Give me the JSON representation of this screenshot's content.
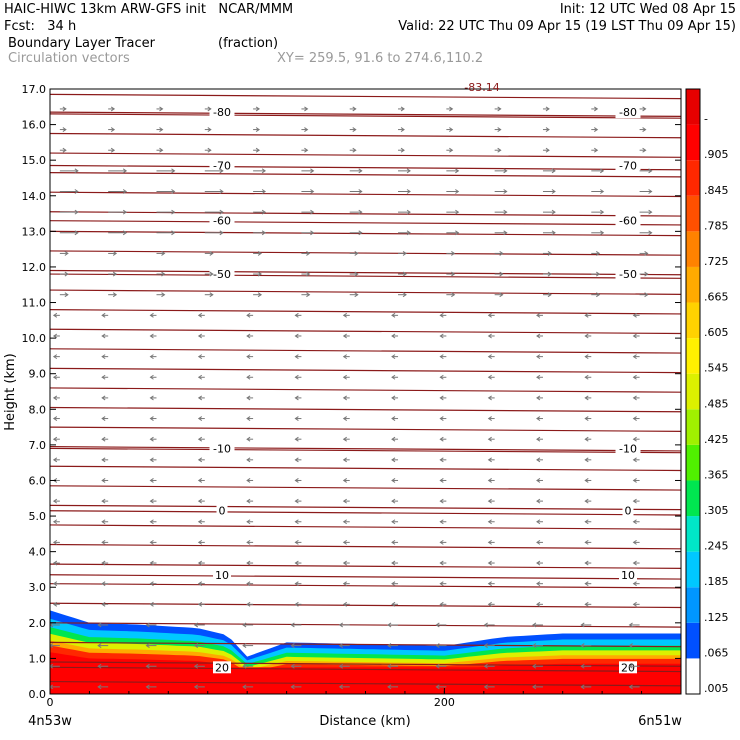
{
  "header": {
    "line1_left": "HAIC-HIWC 13km ARW-GFS init   NCAR/MMM",
    "line1_right": "Init: 12 UTC Wed 08 Apr 15",
    "line2_left": "Fcst:   34 h",
    "line2_right": "Valid: 22 UTC Thu 09 Apr 15 (19 LST Thu 09 Apr 15)",
    "field_name": "Boundary Layer Tracer",
    "field_units": "(fraction)",
    "vector_name": "Circulation vectors",
    "xy_range": "XY= 259.5, 91.6 to 274.6,110.2"
  },
  "chart_data": {
    "type": "cross-section",
    "xlabel": "Distance (km)",
    "ylabel": "Height (km)",
    "xlim": [
      0,
      320
    ],
    "ylim": [
      0,
      17
    ],
    "x_ticks": [
      0,
      200
    ],
    "x_tick_labels": [
      "0",
      "200"
    ],
    "x_end_labels": {
      "left": "4n53w",
      "right": "6n51w"
    },
    "y_ticks": [
      0,
      1,
      2,
      3,
      4,
      5,
      6,
      7,
      8,
      9,
      10,
      11,
      12,
      13,
      14,
      15,
      16,
      17
    ],
    "y_tick_labels": [
      "0.0",
      "1.0",
      "2.0",
      "3.0",
      "4.0",
      "5.0",
      "6.0",
      "7.0",
      "8.0",
      "9.0",
      "10.0",
      "11.0",
      "12.0",
      "13.0",
      "14.0",
      "15.0",
      "16.0",
      "17.0"
    ],
    "colorbar": {
      "labels": [
        ".005",
        ".065",
        ".125",
        ".185",
        ".245",
        ".305",
        ".365",
        ".425",
        ".485",
        ".545",
        ".605",
        ".665",
        ".725",
        ".785",
        ".845",
        ".905",
        "-"
      ],
      "colors": [
        "#ffffff",
        "#0050ff",
        "#0096ff",
        "#00c8ff",
        "#00e6c8",
        "#00e650",
        "#50f000",
        "#a0f000",
        "#dcf000",
        "#fff000",
        "#ffd200",
        "#ffaa00",
        "#ff8200",
        "#ff5000",
        "#ff2800",
        "#ff0000",
        "#e60000"
      ]
    },
    "contour_color": "#8b1a1a",
    "isotherms": [
      {
        "label": "-80",
        "y": 16.35
      },
      {
        "label": "-70",
        "y": 14.85
      },
      {
        "label": "-60",
        "y": 13.3
      },
      {
        "label": "-50",
        "y": 11.8
      },
      {
        "label": "-10",
        "y": 6.9
      },
      {
        "label": "0",
        "y": 5.15
      },
      {
        "label": "10",
        "y": 3.35
      },
      {
        "label": "20",
        "y": 0.75
      }
    ],
    "top_label": "-83.14",
    "tracer_top_km": [
      {
        "x": 0,
        "y": 2.35
      },
      {
        "x": 20,
        "y": 2.0
      },
      {
        "x": 45,
        "y": 1.95
      },
      {
        "x": 75,
        "y": 1.85
      },
      {
        "x": 90,
        "y": 1.65
      },
      {
        "x": 100,
        "y": 1.05
      },
      {
        "x": 120,
        "y": 1.45
      },
      {
        "x": 160,
        "y": 1.4
      },
      {
        "x": 200,
        "y": 1.35
      },
      {
        "x": 230,
        "y": 1.6
      },
      {
        "x": 260,
        "y": 1.7
      },
      {
        "x": 320,
        "y": 1.7
      }
    ]
  }
}
